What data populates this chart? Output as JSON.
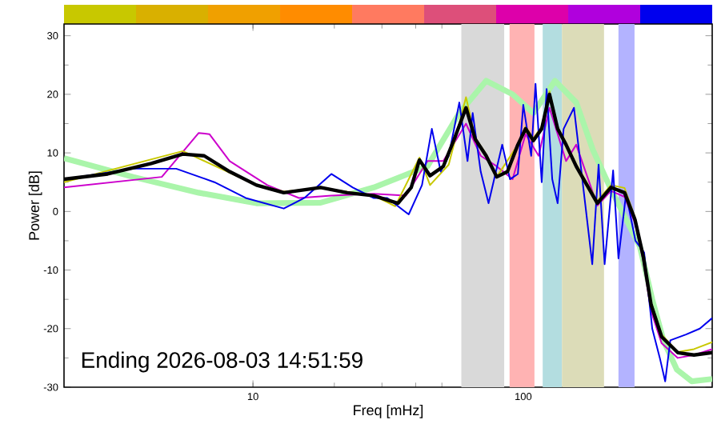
{
  "chart_data": {
    "type": "line",
    "xlabel": "Freq [mHz]",
    "ylabel": "Power [dB]",
    "log": "x",
    "xlim": [
      2,
      500
    ],
    "ylim": [
      -30,
      32
    ],
    "xticks": [
      10,
      100
    ],
    "yticks": [
      -30,
      -20,
      -10,
      0,
      10,
      20,
      30
    ],
    "grid": false,
    "marker": "none",
    "annotations": [
      "Ending 2026-08-03 14:51:59"
    ],
    "bands": [
      {
        "axis": "x",
        "from": 59,
        "to": 85,
        "color": "#d9d9d9"
      },
      {
        "axis": "x",
        "from": 89,
        "to": 110,
        "color": "#ffb3b3"
      },
      {
        "axis": "x",
        "from": 118,
        "to": 139,
        "color": "#b3dde0"
      },
      {
        "axis": "x",
        "from": 139,
        "to": 199,
        "color": "#dcdcb8"
      },
      {
        "axis": "x",
        "from": 225,
        "to": 258,
        "color": "#b3b3ff"
      }
    ],
    "series": [
      {
        "color": "#aaf5aa",
        "x": [
          2,
          3.6,
          6.3,
          10.3,
          17.8,
          28,
          44.2,
          58,
          72.9,
          91.3,
          109,
          131,
          157,
          181,
          210,
          270,
          300,
          330,
          370,
          420,
          500
        ],
        "values": [
          9.1,
          5.9,
          3.2,
          1.4,
          1.5,
          4.1,
          7.7,
          16.8,
          22.3,
          20,
          16.8,
          22.3,
          18.6,
          10.5,
          4,
          -6,
          -15,
          -22,
          -27,
          -29,
          -28.6
        ]
      },
      {
        "color": "#cc00cc",
        "x": [
          2,
          4.6,
          6.3,
          6.9,
          8.2,
          11.3,
          14.8,
          19.5,
          28,
          36.8,
          44.2,
          50.6,
          61.4,
          69.6,
          79.8,
          91.3,
          102,
          114,
          125,
          144,
          157,
          188,
          211,
          237,
          259,
          278,
          297,
          325,
          373,
          428,
          500
        ],
        "values": [
          4.1,
          5.9,
          13.4,
          13.2,
          8.6,
          4.5,
          2.3,
          2.7,
          3,
          2.7,
          8.6,
          8.6,
          15,
          9.5,
          7.7,
          5.5,
          13.2,
          9.5,
          17.7,
          8.6,
          11.4,
          1,
          3.5,
          2.5,
          -2,
          -8.5,
          -17,
          -22.5,
          -25,
          -24.5,
          -23.5
        ]
      },
      {
        "color": "#c8c800",
        "x": [
          2,
          5.5,
          10.3,
          13,
          17.8,
          28,
          33.6,
          41.3,
          45.2,
          53,
          61.4,
          66.5,
          72.9,
          79.8,
          95.5,
          102,
          109,
          117,
          125,
          134,
          157,
          188,
          211,
          237,
          259,
          278,
          297,
          325,
          373,
          428,
          500
        ],
        "values": [
          5,
          10.3,
          4.5,
          3.4,
          4,
          2.7,
          0.9,
          9.2,
          4.5,
          8,
          19.5,
          12.5,
          9.8,
          5.9,
          11.4,
          14.5,
          12.5,
          14.5,
          20.5,
          14.5,
          8,
          1.8,
          4.5,
          4,
          -1,
          -7.5,
          -15.5,
          -21,
          -24,
          -23.5,
          -22.3
        ]
      },
      {
        "color": "#0000ee",
        "x": [
          2,
          3.6,
          5.2,
          7.2,
          9.4,
          13,
          15.5,
          19.5,
          23.4,
          28,
          31.4,
          37.7,
          42.2,
          45.9,
          49.5,
          53,
          58,
          62.2,
          65,
          69.6,
          74.4,
          83.6,
          89.3,
          95.5,
          100,
          107,
          111,
          117,
          122,
          128,
          134,
          141,
          154,
          180,
          190,
          200,
          215,
          225,
          240,
          260,
          280,
          300,
          320,
          335,
          350,
          400,
          450,
          500
        ],
        "values": [
          5.5,
          7.3,
          7.3,
          5,
          2.3,
          0.5,
          2.3,
          6.4,
          4.1,
          2.3,
          2.3,
          -0.5,
          4.5,
          14.1,
          6.8,
          9.5,
          18.6,
          8.6,
          16.8,
          6.8,
          1.4,
          11.4,
          5.5,
          6.4,
          18.2,
          9.5,
          21.8,
          5,
          20.9,
          5.5,
          1.4,
          14.1,
          17.7,
          -9,
          8,
          -9,
          7,
          -8,
          3,
          -5,
          -7,
          -20,
          -25,
          -29,
          -22,
          -21,
          -20,
          -18.2
        ]
      },
      {
        "color": "#000000",
        "x": [
          2,
          2.9,
          4.2,
          5.5,
          6.6,
          8.2,
          10.3,
          13,
          17.8,
          22.3,
          28,
          32.2,
          34.4,
          38.5,
          41.3,
          45.2,
          50.6,
          55.5,
          61.4,
          66.5,
          72.9,
          79.8,
          87.4,
          95.5,
          102,
          109,
          117,
          125,
          134,
          144,
          157,
          188,
          211,
          237,
          259,
          278,
          297,
          325,
          373,
          428,
          500
        ],
        "values": [
          5.5,
          6.4,
          8.2,
          9.8,
          9.5,
          6.8,
          4.5,
          3.2,
          4.1,
          3.2,
          2.7,
          1.8,
          1.4,
          4.1,
          8.8,
          6.1,
          7.7,
          12.3,
          17.7,
          12.3,
          9.5,
          5.9,
          6.8,
          11.4,
          14.1,
          12.1,
          14.1,
          20,
          14.1,
          11.4,
          7.7,
          1.4,
          4.1,
          3.2,
          -1.4,
          -7.7,
          -15.9,
          -21.4,
          -24.1,
          -24.5,
          -24.1
        ]
      }
    ]
  }
}
